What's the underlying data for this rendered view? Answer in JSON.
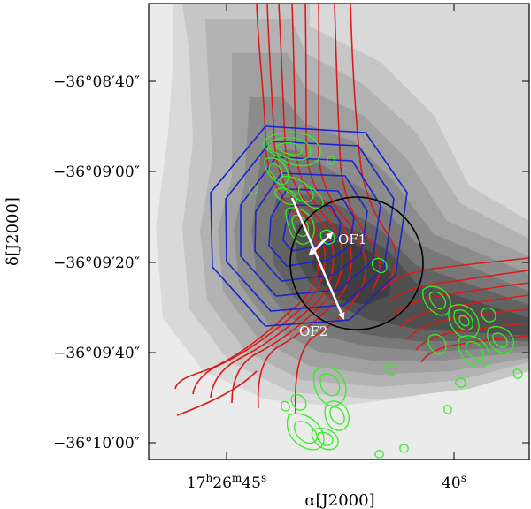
{
  "figure": {
    "xlabel": "α[J2000]",
    "ylabel": "δ[J2000]",
    "y_ticks": [
      "−36°08′40″",
      "−36°09′00″",
      "−36°09′20″",
      "−36°09′40″",
      "−36°10′00″"
    ],
    "x_ticks": {
      "left": {
        "hours": "17",
        "h": "h",
        "minutes": "26",
        "m": "m",
        "seconds": "45",
        "s": "s"
      },
      "right": {
        "seconds": "40",
        "s": "s"
      }
    },
    "annotations": {
      "of1": "OF1",
      "of2": "OF2"
    },
    "colors": {
      "background_gray_levels": [
        "#ebebeb",
        "#d9d9d9",
        "#c6c6c6",
        "#b3b3b3",
        "#a0a0a0",
        "#8c8c8c",
        "#787878",
        "#636363",
        "#4f4f4f",
        "#3f3f3f"
      ],
      "red_contours": "#dd1a1a",
      "blue_contours": "#1c24cc",
      "green_contours": "#33ee22",
      "circle": "#000000",
      "arrows": "#ffffff"
    }
  }
}
